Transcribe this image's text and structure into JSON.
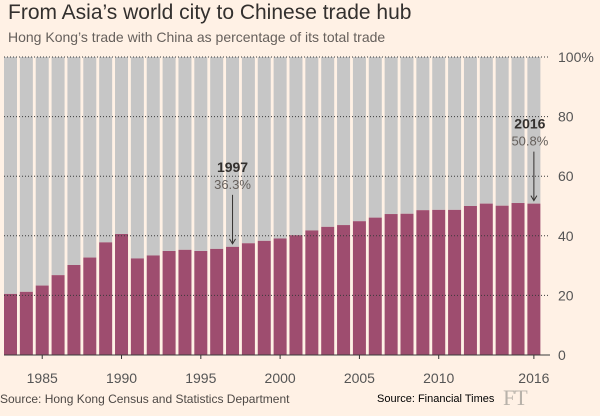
{
  "title": "From Asia’s world city to Chinese trade hub",
  "subtitle": "Hong Kong’s trade with China as percentage of its total trade",
  "source_left": "Source: Hong Kong Census and Statistics Department",
  "source_right": "Source: Financial Times",
  "logo": "FT",
  "colors": {
    "background": "#fff1e5",
    "bar_fill": "#9e4d6f",
    "bar_remainder": "#c6c6c6",
    "gridline": "#3a3a3a",
    "text": "#33302e"
  },
  "chart_data": {
    "type": "bar",
    "title": "From Asia’s world city to Chinese trade hub",
    "subtitle": "Hong Kong’s trade with China as percentage of its total trade",
    "xlabel": "",
    "ylabel": "",
    "ylim": [
      0,
      100
    ],
    "y_ticks": [
      0,
      20,
      40,
      60,
      80,
      100
    ],
    "y_tick_labels": [
      "0",
      "20",
      "40",
      "60",
      "80",
      "100%"
    ],
    "x_tick_labels": [
      "1985",
      "1990",
      "1995",
      "2000",
      "2005",
      "2010",
      "2016"
    ],
    "categories": [
      "1983",
      "1984",
      "1985",
      "1986",
      "1987",
      "1988",
      "1989",
      "1990",
      "1991",
      "1992",
      "1993",
      "1994",
      "1995",
      "1996",
      "1997",
      "1998",
      "1999",
      "2000",
      "2001",
      "2002",
      "2003",
      "2004",
      "2005",
      "2006",
      "2007",
      "2008",
      "2009",
      "2010",
      "2011",
      "2012",
      "2013",
      "2014",
      "2015",
      "2016"
    ],
    "values": [
      20.5,
      21.2,
      23.3,
      26.8,
      30.2,
      32.7,
      37.8,
      40.6,
      32.4,
      33.4,
      34.9,
      35.3,
      34.9,
      35.6,
      36.3,
      37.5,
      38.3,
      39.1,
      40.2,
      41.8,
      43.0,
      43.6,
      44.9,
      46.1,
      47.3,
      47.4,
      48.6,
      48.7,
      48.7,
      50.0,
      50.8,
      50.1,
      51.0,
      50.8
    ],
    "annotations": [
      {
        "year": "1997",
        "label": "1997",
        "value_label": "36.3%"
      },
      {
        "year": "2016",
        "label": "2016",
        "value_label": "50.8%"
      }
    ],
    "grid": true
  }
}
